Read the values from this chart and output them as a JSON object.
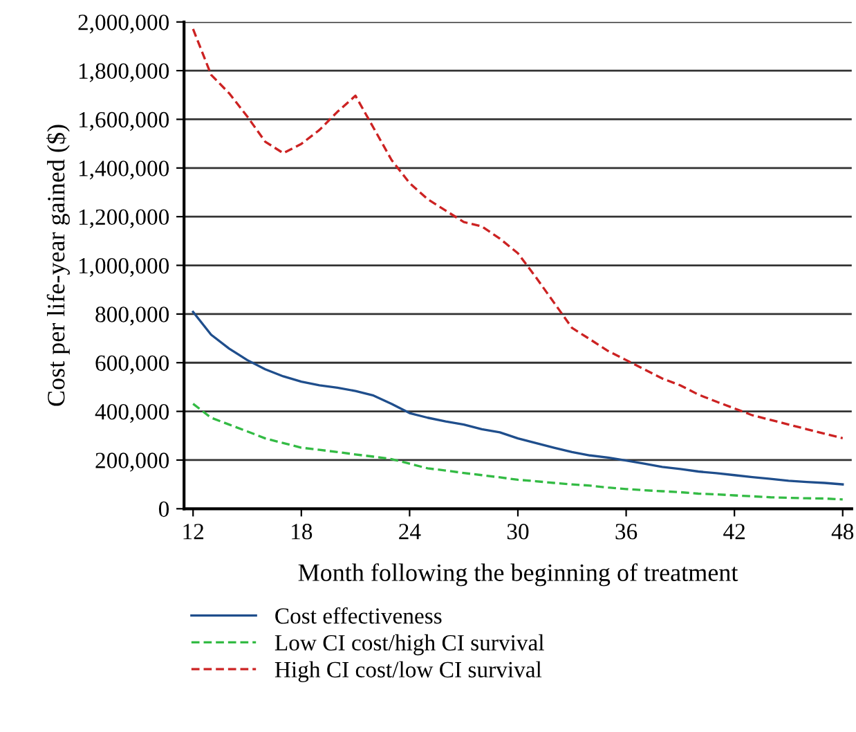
{
  "chart_data": {
    "type": "line",
    "xlabel": "Month following the beginning of treatment",
    "ylabel": "Cost per life-year gained ($)",
    "x": [
      12,
      13,
      14,
      15,
      16,
      17,
      18,
      19,
      20,
      21,
      22,
      23,
      24,
      25,
      26,
      27,
      28,
      29,
      30,
      31,
      32,
      33,
      34,
      35,
      36,
      37,
      38,
      39,
      40,
      41,
      42,
      43,
      44,
      45,
      46,
      47,
      48
    ],
    "series": [
      {
        "name": "Cost effectiveness",
        "color": "#1f4e8c",
        "line_style": "solid",
        "values": [
          809000,
          715000,
          658000,
          611000,
          573000,
          544000,
          522000,
          507000,
          497000,
          484000,
          465000,
          431000,
          393000,
          374000,
          359000,
          346000,
          327000,
          314000,
          289000,
          270000,
          251000,
          233000,
          219000,
          210000,
          198000,
          185000,
          172000,
          163000,
          153000,
          146000,
          138000,
          130000,
          123000,
          115000,
          110000,
          106000,
          100000
        ]
      },
      {
        "name": "Low CI cost/high CI survival",
        "color": "#33bb44",
        "line_style": "dashed",
        "values": [
          431000,
          374000,
          346000,
          318000,
          289000,
          270000,
          251000,
          242000,
          233000,
          223000,
          214000,
          204000,
          185000,
          166000,
          157000,
          147000,
          138000,
          129000,
          119000,
          113000,
          106000,
          100000,
          95000,
          87000,
          81000,
          76000,
          72000,
          68000,
          62000,
          59000,
          55000,
          51000,
          47000,
          45000,
          43000,
          42000,
          38000
        ]
      },
      {
        "name": "High CI cost/low CI survival",
        "color": "#cc2222",
        "line_style": "dashed",
        "values": [
          1971000,
          1783000,
          1707000,
          1612000,
          1508000,
          1461000,
          1499000,
          1556000,
          1631000,
          1697000,
          1565000,
          1433000,
          1338000,
          1272000,
          1225000,
          1178000,
          1160000,
          1110000,
          1050000,
          951000,
          847000,
          743000,
          696000,
          648000,
          611000,
          573000,
          535000,
          507000,
          469000,
          440000,
          412000,
          384000,
          365000,
          346000,
          327000,
          308000,
          290000
        ]
      }
    ],
    "xlim": [
      11.5,
      48.5
    ],
    "xticks": [
      12,
      18,
      24,
      30,
      36,
      42,
      48
    ],
    "ylim": [
      0,
      2000000
    ],
    "yticks": [
      {
        "value": 0,
        "label": "0"
      },
      {
        "value": 200000,
        "label": "200,000"
      },
      {
        "value": 400000,
        "label": "400,000"
      },
      {
        "value": 600000,
        "label": "600,000"
      },
      {
        "value": 800000,
        "label": "800,000"
      },
      {
        "value": 1000000,
        "label": "1,000,000"
      },
      {
        "value": 1200000,
        "label": "1,200,000"
      },
      {
        "value": 1400000,
        "label": "1,400,000"
      },
      {
        "value": 1600000,
        "label": "1,600,000"
      },
      {
        "value": 1800000,
        "label": "1,800,000"
      },
      {
        "value": 2000000,
        "label": "2,000,000"
      }
    ],
    "grid": "y",
    "legend": "bottom",
    "marker": "none"
  }
}
